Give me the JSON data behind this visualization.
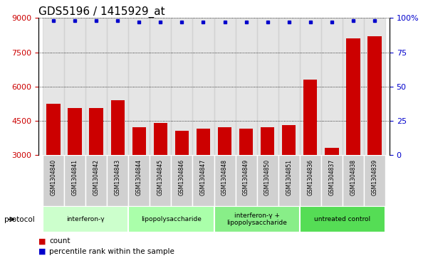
{
  "title": "GDS5196 / 1415929_at",
  "samples": [
    "GSM1304840",
    "GSM1304841",
    "GSM1304842",
    "GSM1304843",
    "GSM1304844",
    "GSM1304845",
    "GSM1304846",
    "GSM1304847",
    "GSM1304848",
    "GSM1304849",
    "GSM1304850",
    "GSM1304851",
    "GSM1304836",
    "GSM1304837",
    "GSM1304838",
    "GSM1304839"
  ],
  "counts": [
    5250,
    5050,
    5050,
    5400,
    4200,
    4400,
    4050,
    4150,
    4200,
    4150,
    4200,
    4300,
    6300,
    3300,
    8100,
    8200
  ],
  "percentile_ranks": [
    98,
    98,
    98,
    98,
    97,
    97,
    97,
    97,
    97,
    97,
    97,
    97,
    97,
    97,
    98,
    98
  ],
  "ylim_left": [
    3000,
    9000
  ],
  "ylim_right": [
    0,
    100
  ],
  "yticks_left": [
    3000,
    4500,
    6000,
    7500,
    9000
  ],
  "yticks_right": [
    0,
    25,
    50,
    75,
    100
  ],
  "bar_color": "#cc0000",
  "dot_color": "#0000cc",
  "bar_width": 0.65,
  "protocol_groups": [
    {
      "label": "interferon-γ",
      "start": 0,
      "end": 4
    },
    {
      "label": "lipopolysaccharide",
      "start": 4,
      "end": 8
    },
    {
      "label": "interferon-γ +\nlipopolysaccharide",
      "start": 8,
      "end": 12
    },
    {
      "label": "untreated control",
      "start": 12,
      "end": 16
    }
  ],
  "proto_colors": [
    "#ccffcc",
    "#aaffaa",
    "#88ee88",
    "#55dd55"
  ],
  "protocol_label": "protocol",
  "legend_count_label": "count",
  "legend_pct_label": "percentile rank within the sample",
  "bar_label_color": "#cc0000",
  "right_axis_color": "#0000cc",
  "title_fontsize": 11,
  "tick_fontsize": 8,
  "col_bg_color": "#cccccc",
  "col_bg_alpha": 0.5
}
